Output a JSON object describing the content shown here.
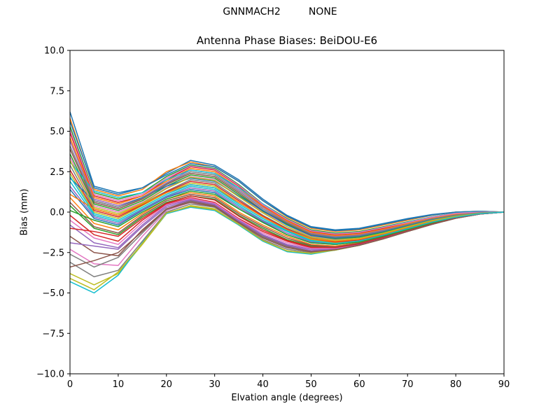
{
  "figure": {
    "suptitle": "GNNMACH2         NONE"
  },
  "chart_data": {
    "type": "line",
    "title": "Antenna Phase Biases: BeiDOU-E6",
    "xlabel": "Elvation angle (degrees)",
    "ylabel": "Bias (mm)",
    "xlim": [
      0,
      90
    ],
    "ylim": [
      -10,
      10
    ],
    "x_ticks": [
      "0",
      "10",
      "20",
      "30",
      "40",
      "50",
      "60",
      "70",
      "80",
      "90"
    ],
    "y_ticks": [
      "−10.0",
      "−7.5",
      "−5.0",
      "−2.5",
      "0.0",
      "2.5",
      "5.0",
      "7.5",
      "10.0"
    ],
    "grid": false,
    "legend": "none",
    "colors": [
      "#1f77b4",
      "#ff7f0e",
      "#2ca02c",
      "#d62728",
      "#9467bd",
      "#8c564b",
      "#e377c2",
      "#7f7f7f",
      "#bcbd22",
      "#17becf"
    ],
    "x": [
      0,
      5,
      10,
      15,
      20,
      25,
      30,
      35,
      40,
      45,
      50,
      55,
      60,
      65,
      70,
      75,
      80,
      85,
      90
    ],
    "series": [
      {
        "values": [
          6.2,
          1.6,
          1.2,
          1.5,
          2.4,
          3.2,
          2.9,
          2.0,
          0.8,
          -0.2,
          -0.9,
          -1.1,
          -1.0,
          -0.7,
          -0.4,
          -0.15,
          0.0,
          0.05,
          0.0
        ]
      },
      {
        "values": [
          5.8,
          1.4,
          1.0,
          1.4,
          2.5,
          3.1,
          2.8,
          1.9,
          0.7,
          -0.3,
          -1.0,
          -1.2,
          -1.1,
          -0.8,
          -0.5,
          -0.2,
          0.0,
          0.05,
          0.0
        ]
      },
      {
        "values": [
          5.3,
          1.2,
          0.8,
          1.2,
          2.2,
          2.9,
          2.7,
          1.7,
          0.5,
          -0.4,
          -1.1,
          -1.3,
          -1.2,
          -0.9,
          -0.6,
          -0.3,
          -0.05,
          0.0,
          0.0
        ]
      },
      {
        "values": [
          4.9,
          1.0,
          0.6,
          1.0,
          2.0,
          2.8,
          2.6,
          1.6,
          0.4,
          -0.5,
          -1.2,
          -1.4,
          -1.3,
          -1.0,
          -0.7,
          -0.35,
          -0.1,
          0.0,
          0.0
        ]
      },
      {
        "values": [
          4.4,
          0.8,
          0.4,
          0.9,
          1.8,
          2.6,
          2.4,
          1.4,
          0.3,
          -0.6,
          -1.3,
          -1.5,
          -1.4,
          -1.1,
          -0.75,
          -0.4,
          -0.15,
          -0.02,
          0.0
        ]
      },
      {
        "values": [
          3.9,
          0.6,
          0.2,
          0.8,
          1.7,
          2.4,
          2.2,
          1.2,
          0.1,
          -0.7,
          -1.4,
          -1.6,
          -1.5,
          -1.2,
          -0.8,
          -0.45,
          -0.2,
          -0.05,
          0.0
        ]
      },
      {
        "values": [
          3.4,
          0.4,
          0.0,
          0.6,
          1.5,
          2.2,
          2.0,
          1.0,
          0.0,
          -0.8,
          -1.5,
          -1.7,
          -1.6,
          -1.3,
          -0.9,
          -0.5,
          -0.25,
          -0.08,
          0.0
        ]
      },
      {
        "values": [
          2.9,
          0.2,
          -0.2,
          0.5,
          1.3,
          2.0,
          1.8,
          0.8,
          -0.2,
          -1.0,
          -1.6,
          -1.8,
          -1.7,
          -1.35,
          -0.95,
          -0.55,
          -0.28,
          -0.1,
          0.0
        ]
      },
      {
        "values": [
          2.4,
          0.0,
          -0.4,
          0.4,
          1.2,
          1.8,
          1.6,
          0.6,
          -0.3,
          -1.1,
          -1.7,
          -1.9,
          -1.75,
          -1.4,
          -1.0,
          -0.6,
          -0.3,
          -0.1,
          0.0
        ]
      },
      {
        "values": [
          1.9,
          -0.2,
          -0.6,
          0.2,
          1.0,
          1.6,
          1.4,
          0.4,
          -0.5,
          -1.2,
          -1.8,
          -2.0,
          -1.8,
          -1.45,
          -1.05,
          -0.65,
          -0.32,
          -0.1,
          0.0
        ]
      },
      {
        "values": [
          1.4,
          -0.4,
          -0.8,
          0.1,
          0.9,
          1.4,
          1.2,
          0.2,
          -0.6,
          -1.4,
          -1.9,
          -2.0,
          -1.85,
          -1.5,
          -1.1,
          -0.7,
          -0.35,
          -0.12,
          0.0
        ]
      },
      {
        "values": [
          0.9,
          -0.7,
          -1.1,
          -0.1,
          0.8,
          1.2,
          1.0,
          0.0,
          -0.8,
          -1.5,
          -2.0,
          -2.1,
          -1.9,
          -1.5,
          -1.1,
          -0.7,
          -0.35,
          -0.12,
          0.0
        ]
      },
      {
        "values": [
          0.4,
          -1.0,
          -1.4,
          -0.3,
          0.6,
          1.0,
          0.8,
          -0.2,
          -1.0,
          -1.7,
          -2.1,
          -2.2,
          -1.95,
          -1.55,
          -1.15,
          -0.72,
          -0.36,
          -0.12,
          0.0
        ]
      },
      {
        "values": [
          -0.2,
          -1.4,
          -1.8,
          -0.5,
          0.5,
          0.9,
          0.6,
          -0.4,
          -1.2,
          -1.8,
          -2.2,
          -2.2,
          -2.0,
          -1.6,
          -1.15,
          -0.74,
          -0.37,
          -0.12,
          0.0
        ]
      },
      {
        "values": [
          -0.8,
          -1.9,
          -2.2,
          -0.8,
          0.4,
          0.8,
          0.5,
          -0.5,
          -1.4,
          -2.0,
          -2.3,
          -2.3,
          -2.0,
          -1.6,
          -1.2,
          -0.75,
          -0.38,
          -0.12,
          0.0
        ]
      },
      {
        "values": [
          -1.5,
          -2.5,
          -2.7,
          -1.1,
          0.2,
          0.7,
          0.4,
          -0.6,
          -1.5,
          -2.1,
          -2.4,
          -2.3,
          -2.05,
          -1.65,
          -1.2,
          -0.76,
          -0.38,
          -0.12,
          0.0
        ]
      },
      {
        "values": [
          -2.3,
          -3.2,
          -3.3,
          -1.5,
          0.1,
          0.6,
          0.3,
          -0.7,
          -1.6,
          -2.2,
          -2.45,
          -2.35,
          -2.05,
          -1.65,
          -1.2,
          -0.76,
          -0.38,
          -0.12,
          0.0
        ]
      },
      {
        "values": [
          -3.1,
          -4.0,
          -3.6,
          -1.8,
          0.0,
          0.5,
          0.3,
          -0.7,
          -1.7,
          -2.3,
          -2.5,
          -2.35,
          -2.05,
          -1.65,
          -1.2,
          -0.76,
          -0.38,
          -0.12,
          0.0
        ]
      },
      {
        "values": [
          -3.8,
          -4.5,
          -3.8,
          -2.0,
          -0.1,
          0.4,
          0.2,
          -0.8,
          -1.8,
          -2.4,
          -2.55,
          -2.35,
          -2.05,
          -1.65,
          -1.2,
          -0.76,
          -0.38,
          -0.12,
          0.0
        ]
      },
      {
        "values": [
          -4.3,
          -5.0,
          -3.9,
          -1.9,
          -0.1,
          0.3,
          0.1,
          -0.8,
          -1.8,
          -2.45,
          -2.6,
          -2.35,
          -2.05,
          -1.65,
          -1.2,
          -0.76,
          -0.38,
          -0.12,
          0.0
        ]
      },
      {
        "values": [
          5.6,
          1.5,
          1.1,
          1.5,
          2.3,
          3.0,
          2.8,
          1.9,
          0.7,
          -0.25,
          -0.95,
          -1.15,
          -1.05,
          -0.75,
          -0.45,
          -0.18,
          0.0,
          0.05,
          0.0
        ]
      },
      {
        "values": [
          4.6,
          0.9,
          0.5,
          1.0,
          1.9,
          2.7,
          2.5,
          1.5,
          0.35,
          -0.55,
          -1.25,
          -1.45,
          -1.35,
          -1.05,
          -0.72,
          -0.38,
          -0.12,
          0.0,
          0.0
        ]
      },
      {
        "values": [
          3.6,
          0.5,
          0.1,
          0.7,
          1.6,
          2.3,
          2.1,
          1.1,
          0.05,
          -0.75,
          -1.45,
          -1.65,
          -1.55,
          -1.25,
          -0.85,
          -0.48,
          -0.22,
          -0.06,
          0.0
        ]
      },
      {
        "values": [
          2.6,
          0.1,
          -0.3,
          0.45,
          1.25,
          1.9,
          1.7,
          0.7,
          -0.25,
          -1.05,
          -1.65,
          -1.85,
          -1.72,
          -1.38,
          -0.98,
          -0.58,
          -0.3,
          -0.1,
          0.0
        ]
      },
      {
        "values": [
          1.6,
          -0.3,
          -0.7,
          0.15,
          0.95,
          1.5,
          1.3,
          0.3,
          -0.55,
          -1.3,
          -1.85,
          -2.0,
          -1.82,
          -1.48,
          -1.08,
          -0.68,
          -0.34,
          -0.11,
          0.0
        ]
      },
      {
        "values": [
          0.6,
          -0.9,
          -1.3,
          -0.2,
          0.7,
          1.1,
          0.9,
          -0.1,
          -0.9,
          -1.6,
          -2.05,
          -2.15,
          -1.92,
          -1.52,
          -1.12,
          -0.71,
          -0.36,
          -0.12,
          0.0
        ]
      },
      {
        "values": [
          -0.5,
          -1.6,
          -2.0,
          -0.65,
          0.45,
          0.85,
          0.55,
          -0.45,
          -1.3,
          -1.9,
          -2.25,
          -2.25,
          -2.0,
          -1.6,
          -1.17,
          -0.75,
          -0.37,
          -0.12,
          0.0
        ]
      },
      {
        "values": [
          -2.6,
          -3.4,
          -2.8,
          -1.3,
          0.15,
          0.65,
          0.35,
          -0.65,
          -1.55,
          -2.15,
          -2.45,
          -2.32,
          -2.05,
          -1.65,
          -1.2,
          -0.76,
          -0.38,
          -0.12,
          0.0
        ]
      },
      {
        "values": [
          -4.1,
          -4.8,
          -3.7,
          -1.95,
          -0.05,
          0.35,
          0.15,
          -0.75,
          -1.75,
          -2.4,
          -2.55,
          -2.35,
          -2.05,
          -1.65,
          -1.2,
          -0.76,
          -0.38,
          -0.12,
          0.0
        ]
      },
      {
        "values": [
          3.1,
          1.3,
          0.9,
          1.2,
          2.0,
          2.6,
          2.4,
          1.5,
          0.5,
          -0.45,
          -1.15,
          -1.35,
          -1.25,
          -0.95,
          -0.62,
          -0.3,
          -0.06,
          0.02,
          0.0
        ]
      },
      {
        "values": [
          2.1,
          0.7,
          0.3,
          0.9,
          1.6,
          2.1,
          1.9,
          1.0,
          0.1,
          -0.8,
          -1.45,
          -1.6,
          -1.5,
          -1.2,
          -0.82,
          -0.46,
          -0.2,
          -0.05,
          0.0
        ]
      },
      {
        "values": [
          1.1,
          0.2,
          -0.2,
          0.5,
          1.2,
          1.7,
          1.5,
          0.6,
          -0.3,
          -1.1,
          -1.65,
          -1.8,
          -1.68,
          -1.35,
          -0.95,
          -0.56,
          -0.28,
          -0.09,
          0.0
        ]
      },
      {
        "values": [
          0.1,
          -0.5,
          -0.9,
          0.0,
          0.8,
          1.3,
          1.1,
          0.2,
          -0.65,
          -1.4,
          -1.9,
          -2.0,
          -1.85,
          -1.48,
          -1.08,
          -0.68,
          -0.34,
          -0.11,
          0.0
        ]
      },
      {
        "values": [
          -1.0,
          -1.2,
          -1.5,
          -0.4,
          0.55,
          1.0,
          0.75,
          -0.25,
          -1.1,
          -1.75,
          -2.15,
          -2.2,
          -1.97,
          -1.58,
          -1.16,
          -0.74,
          -0.37,
          -0.12,
          0.0
        ]
      },
      {
        "values": [
          -1.9,
          -2.1,
          -2.3,
          -0.9,
          0.3,
          0.75,
          0.45,
          -0.55,
          -1.45,
          -2.05,
          -2.38,
          -2.3,
          -2.03,
          -1.63,
          -1.19,
          -0.76,
          -0.38,
          -0.12,
          0.0
        ]
      },
      {
        "values": [
          -3.4,
          -3.0,
          -2.5,
          -1.2,
          0.2,
          0.6,
          0.35,
          -0.65,
          -1.6,
          -2.2,
          -2.45,
          -2.33,
          -2.05,
          -1.65,
          -1.2,
          -0.76,
          -0.38,
          -0.12,
          0.0
        ]
      },
      {
        "values": [
          5.1,
          1.1,
          0.7,
          1.1,
          2.1,
          2.85,
          2.65,
          1.65,
          0.45,
          -0.45,
          -1.15,
          -1.35,
          -1.25,
          -0.95,
          -0.65,
          -0.32,
          -0.08,
          0.0,
          0.0
        ]
      },
      {
        "values": [
          4.1,
          0.7,
          0.3,
          0.85,
          1.75,
          2.5,
          2.3,
          1.3,
          0.2,
          -0.65,
          -1.35,
          -1.55,
          -1.45,
          -1.15,
          -0.78,
          -0.42,
          -0.18,
          -0.04,
          0.0
        ]
      },
      {
        "values": [
          3.2,
          0.3,
          -0.1,
          0.55,
          1.45,
          2.15,
          1.95,
          0.95,
          -0.05,
          -0.9,
          -1.55,
          -1.75,
          -1.62,
          -1.3,
          -0.9,
          -0.52,
          -0.26,
          -0.08,
          0.0
        ]
      },
      {
        "values": [
          2.2,
          -0.1,
          -0.5,
          0.3,
          1.1,
          1.7,
          1.5,
          0.5,
          -0.4,
          -1.15,
          -1.75,
          -1.95,
          -1.78,
          -1.42,
          -1.02,
          -0.62,
          -0.31,
          -0.1,
          0.0
        ]
      }
    ]
  }
}
